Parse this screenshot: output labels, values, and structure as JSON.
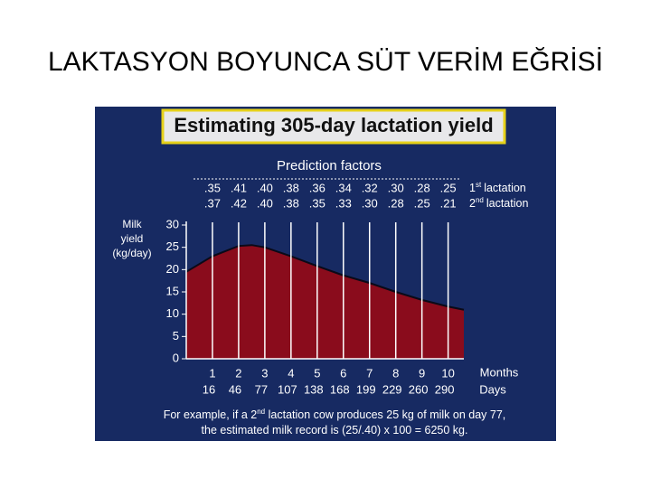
{
  "slide": {
    "title": "LAKTASYON BOYUNCA SÜT VERİM EĞRİSİ"
  },
  "chart_data": {
    "type": "area",
    "title": "Estimating 305-day lactation yield",
    "prediction_factors": {
      "title": "Prediction factors",
      "rows": [
        {
          "number": "1",
          "suffix": "st",
          "label": "lactation",
          "values": [
            ".35",
            ".41",
            ".40",
            ".38",
            ".36",
            ".34",
            ".32",
            ".30",
            ".28",
            ".25"
          ]
        },
        {
          "number": "2",
          "suffix": "nd",
          "label": "lactation",
          "values": [
            ".37",
            ".42",
            ".40",
            ".38",
            ".35",
            ".33",
            ".30",
            ".28",
            ".25",
            ".21"
          ]
        }
      ]
    },
    "y_label": [
      "Milk",
      "yield",
      "(kg/day)"
    ],
    "x_label": "Months",
    "x2_label": "Days",
    "x": [
      0,
      1,
      2,
      2.5,
      3,
      4,
      5,
      6,
      7,
      8,
      9,
      10,
      10.6
    ],
    "series": [
      {
        "color": "#8a0c1c",
        "values": [
          19.5,
          23,
          25.3,
          25.5,
          25,
          23,
          20.8,
          18.7,
          17,
          15,
          13.2,
          11.7,
          11
        ]
      }
    ],
    "xlim": [
      0,
      10.6
    ],
    "xticks": [
      1,
      2,
      3,
      4,
      5,
      6,
      7,
      8,
      9,
      10
    ],
    "day_labels": [
      "16",
      "46",
      "77",
      "107",
      "138",
      "168",
      "199",
      "229",
      "260",
      "290"
    ],
    "ylim": [
      0,
      30
    ],
    "yticks": [
      0,
      5,
      10,
      15,
      20,
      25,
      30
    ],
    "grid": true,
    "note": [
      [
        "For example, if a 2",
        "nd",
        " lactation cow produces 25 kg of milk on day 77,"
      ],
      [
        "the estimated milk record is  (25/.40) x 100 = 6250 kg."
      ]
    ]
  }
}
